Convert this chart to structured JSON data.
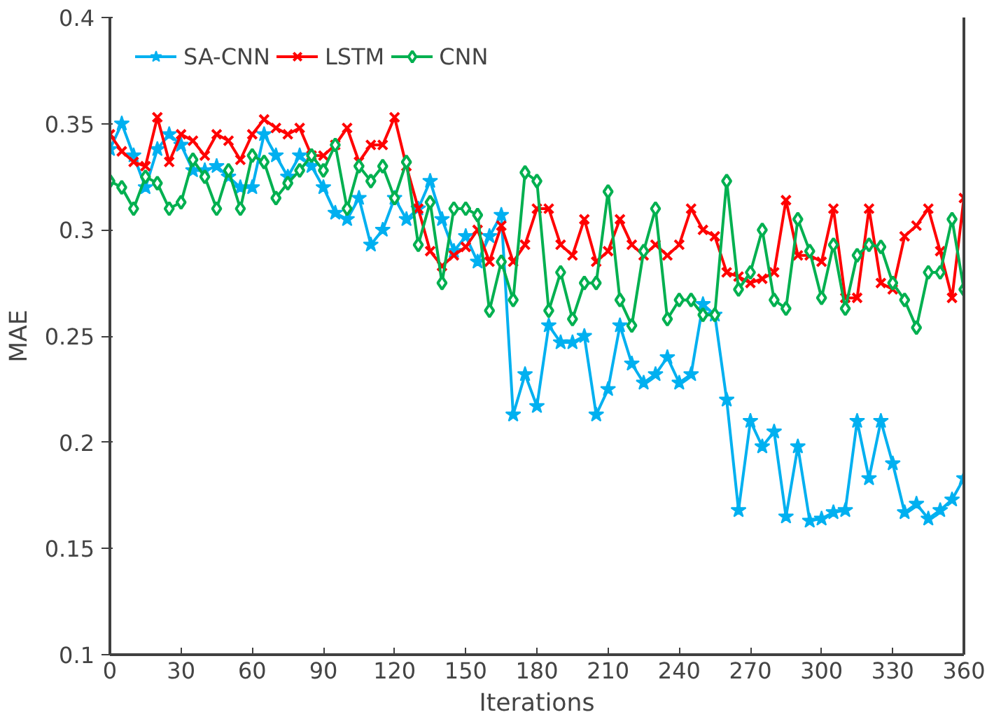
{
  "chart_data": {
    "type": "line",
    "xlabel": "Iterations",
    "ylabel": "MAE",
    "xlim": [
      0,
      360
    ],
    "ylim": [
      0.1,
      0.4
    ],
    "xticks": [
      0,
      30,
      60,
      90,
      120,
      150,
      180,
      210,
      240,
      270,
      300,
      330,
      360
    ],
    "yticks": [
      0.1,
      0.15,
      0.2,
      0.25,
      0.3,
      0.35,
      0.4
    ],
    "grid": false,
    "legend": "top left",
    "x": [
      0,
      5,
      10,
      15,
      20,
      25,
      30,
      35,
      40,
      45,
      50,
      55,
      60,
      65,
      70,
      75,
      80,
      85,
      90,
      95,
      100,
      105,
      110,
      115,
      120,
      125,
      130,
      135,
      140,
      145,
      150,
      155,
      160,
      165,
      170,
      175,
      180,
      185,
      190,
      195,
      200,
      205,
      210,
      215,
      220,
      225,
      230,
      235,
      240,
      245,
      250,
      255,
      260,
      265,
      270,
      275,
      280,
      285,
      290,
      295,
      300,
      305,
      310,
      315,
      320,
      325,
      330,
      335,
      340,
      345,
      350,
      355,
      360
    ],
    "series": [
      {
        "name": "SA-CNN",
        "color": "#00b0f0",
        "marker": "star",
        "values": [
          0.338,
          0.35,
          0.335,
          0.32,
          0.338,
          0.345,
          0.34,
          0.328,
          0.328,
          0.33,
          0.325,
          0.32,
          0.32,
          0.345,
          0.335,
          0.325,
          0.335,
          0.33,
          0.32,
          0.308,
          0.305,
          0.315,
          0.293,
          0.3,
          0.315,
          0.305,
          0.31,
          0.323,
          0.305,
          0.29,
          0.297,
          0.285,
          0.297,
          0.307,
          0.213,
          0.232,
          0.217,
          0.255,
          0.247,
          0.247,
          0.25,
          0.213,
          0.225,
          0.255,
          0.237,
          0.228,
          0.232,
          0.24,
          0.228,
          0.232,
          0.265,
          0.26,
          0.22,
          0.168,
          0.21,
          0.198,
          0.205,
          0.165,
          0.198,
          0.163,
          0.164,
          0.167,
          0.168,
          0.21,
          0.183,
          0.21,
          0.19,
          0.167,
          0.171,
          0.164,
          0.168,
          0.173,
          0.183
        ]
      },
      {
        "name": "LSTM",
        "color": "#ff0000",
        "marker": "cross",
        "values": [
          0.345,
          0.337,
          0.332,
          0.33,
          0.353,
          0.332,
          0.345,
          0.342,
          0.335,
          0.345,
          0.342,
          0.333,
          0.345,
          0.352,
          0.348,
          0.345,
          0.348,
          0.335,
          0.335,
          0.34,
          0.348,
          0.332,
          0.34,
          0.34,
          0.353,
          0.33,
          0.31,
          0.29,
          0.283,
          0.288,
          0.292,
          0.3,
          0.285,
          0.302,
          0.285,
          0.293,
          0.31,
          0.31,
          0.293,
          0.288,
          0.305,
          0.285,
          0.29,
          0.305,
          0.293,
          0.288,
          0.293,
          0.288,
          0.293,
          0.31,
          0.3,
          0.297,
          0.28,
          0.278,
          0.275,
          0.277,
          0.28,
          0.314,
          0.288,
          0.288,
          0.285,
          0.31,
          0.268,
          0.268,
          0.31,
          0.275,
          0.272,
          0.297,
          0.302,
          0.31,
          0.29,
          0.268,
          0.315
        ]
      },
      {
        "name": "CNN",
        "color": "#00b050",
        "marker": "diamond",
        "values": [
          0.323,
          0.32,
          0.31,
          0.325,
          0.322,
          0.31,
          0.313,
          0.333,
          0.325,
          0.31,
          0.328,
          0.31,
          0.335,
          0.332,
          0.315,
          0.322,
          0.328,
          0.335,
          0.328,
          0.34,
          0.31,
          0.33,
          0.323,
          0.33,
          0.315,
          0.332,
          0.293,
          0.313,
          0.275,
          0.31,
          0.31,
          0.307,
          0.262,
          0.285,
          0.267,
          0.327,
          0.323,
          0.262,
          0.28,
          0.258,
          0.275,
          0.275,
          0.318,
          0.267,
          0.255,
          0.29,
          0.31,
          0.258,
          0.267,
          0.267,
          0.26,
          0.26,
          0.323,
          0.272,
          0.28,
          0.3,
          0.267,
          0.263,
          0.305,
          0.29,
          0.268,
          0.293,
          0.263,
          0.288,
          0.293,
          0.292,
          0.275,
          0.267,
          0.254,
          0.28,
          0.28,
          0.305,
          0.272
        ]
      }
    ]
  }
}
